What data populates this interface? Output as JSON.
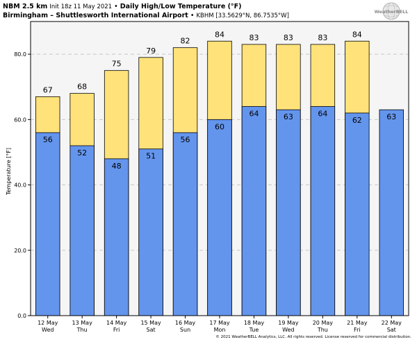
{
  "header": {
    "model": "NBM 2.5 km",
    "init": "Init 18z 11 May 2021",
    "sep": "•",
    "title": "Daily High/Low Temperature (°F)",
    "station": "Birmingham – Shuttlesworth International Airport",
    "station_id": "KBHM [33.5629°N, 86.7535°W]"
  },
  "logo": {
    "text": "WeatherBELL",
    "icon": "weatherbell-globe-logo"
  },
  "copyright": "© 2021 WeatherBELL Analytics, LLC. All rights reserved. License reserved for commercial distribution.",
  "colors": {
    "high": "#ffe27a",
    "low": "#6495ed",
    "plot_bg": "#f5f5f5",
    "grid": "#c8c8c8"
  },
  "chart_data": {
    "type": "bar",
    "ylabel": "Temperature [°F]",
    "ylim": [
      0,
      90
    ],
    "yticks": [
      0,
      20,
      40,
      60,
      80
    ],
    "ytick_labels": [
      "0.0",
      "20.0",
      "40.0",
      "60.0",
      "80.0"
    ],
    "grid": "horizontal dashed",
    "categories": [
      {
        "date": "12 May",
        "day": "Wed"
      },
      {
        "date": "13 May",
        "day": "Thu"
      },
      {
        "date": "14 May",
        "day": "Fri"
      },
      {
        "date": "15 May",
        "day": "Sat"
      },
      {
        "date": "16 May",
        "day": "Sun"
      },
      {
        "date": "17 May",
        "day": "Mon"
      },
      {
        "date": "18 May",
        "day": "Tue"
      },
      {
        "date": "19 May",
        "day": "Wed"
      },
      {
        "date": "20 May",
        "day": "Thu"
      },
      {
        "date": "21 May",
        "day": "Fri"
      },
      {
        "date": "22 May",
        "day": "Sat"
      }
    ],
    "series": [
      {
        "values": [
          67,
          68,
          75,
          79,
          82,
          84,
          83,
          83,
          83,
          84,
          null
        ]
      },
      {
        "values": [
          56,
          52,
          48,
          51,
          56,
          60,
          64,
          63,
          64,
          62,
          63
        ]
      }
    ]
  }
}
